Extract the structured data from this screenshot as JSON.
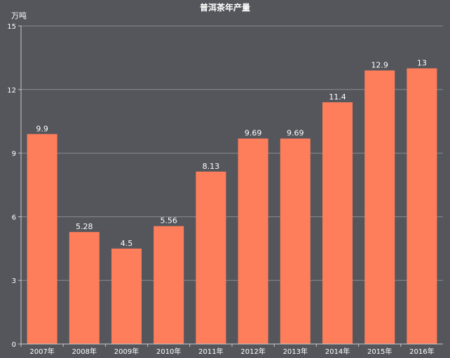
{
  "chart_data": {
    "type": "bar",
    "title": "普洱茶年产量",
    "y_unit": "万吨",
    "categories": [
      "2007年",
      "2008年",
      "2009年",
      "2010年",
      "2011年",
      "2012年",
      "2013年",
      "2014年",
      "2015年",
      "2016年"
    ],
    "values": [
      9.9,
      5.28,
      4.5,
      5.56,
      8.13,
      9.69,
      9.69,
      11.4,
      12.9,
      13
    ],
    "data_labels": [
      "9.9",
      "5.28",
      "4.5",
      "5.56",
      "8.13",
      "9.69",
      "9.69",
      "11.4",
      "12.9",
      "13"
    ],
    "ylim": [
      0,
      15
    ],
    "yticks": [
      0,
      3,
      6,
      9,
      12,
      15
    ],
    "grid": true,
    "colors": {
      "background": "#54565c",
      "bar": "#fe7e5b"
    }
  }
}
